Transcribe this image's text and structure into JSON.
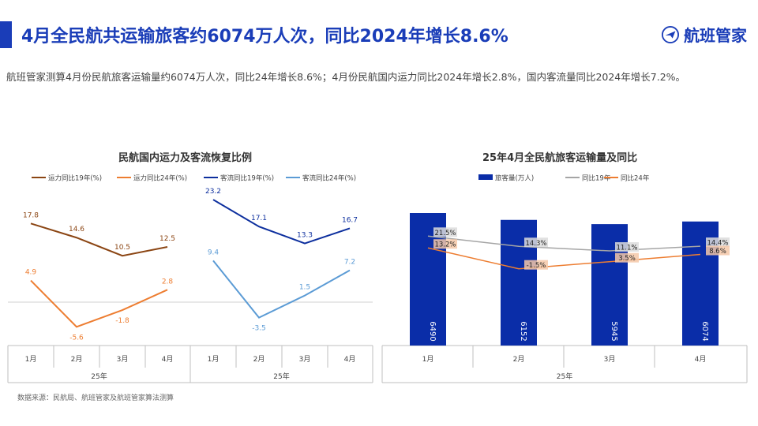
{
  "page": {
    "title": "4月全民航共运输旅客约6074万人次，同比2024年增长8.6%",
    "logo_text": "航班管家",
    "description": "航班管家测算4月份民航旅客运输量约6074万人次，同比24年增长8.6%；4月份民航国内运力同比2024年增长2.8%，国内客流量同比2024年增长7.2%。",
    "source": "数据来源：民航局、航班管家及航班管家算法测算"
  },
  "chart_data": [
    {
      "type": "line",
      "title": "民航国内运力及客流恢复比例",
      "categories": [
        "1月",
        "2月",
        "3月",
        "4月"
      ],
      "x_group_label": "25年",
      "legend_position": "top",
      "panels": [
        {
          "series": [
            {
              "name": "运力同比19年(%)",
              "color": "#8b4513",
              "values": [
                17.8,
                14.6,
                10.5,
                12.5
              ],
              "labels": [
                "17.8",
                "14.6",
                "10.5",
                "12.5"
              ]
            },
            {
              "name": "运力同比24年(%)",
              "color": "#ed7d31",
              "values": [
                4.9,
                -5.6,
                -1.8,
                2.8
              ],
              "labels": [
                "4.9",
                "-5.6",
                "-1.8",
                "2.8"
              ]
            }
          ]
        },
        {
          "series": [
            {
              "name": "客流同比19年(%)",
              "color": "#0d2f9e",
              "values": [
                23.2,
                17.1,
                13.3,
                16.7
              ],
              "labels": [
                "23.2",
                "17.1",
                "13.3",
                "16.7"
              ]
            },
            {
              "name": "客流同比24年(%)",
              "color": "#5b9bd5",
              "values": [
                9.4,
                -3.5,
                1.5,
                7.2
              ],
              "labels": [
                "9.4",
                "-3.5",
                "1.5",
                "7.2"
              ]
            }
          ]
        }
      ]
    },
    {
      "type": "bar",
      "title": "25年4月全民航旅客运输量及同比",
      "categories": [
        "1月",
        "2月",
        "3月",
        "4月"
      ],
      "x_group_label": "25年",
      "legend_position": "top",
      "series": [
        {
          "name": "旅客量(万人)",
          "type": "bar",
          "color": "#0a2da8",
          "values": [
            6490,
            6152,
            5945,
            6074
          ],
          "labels": [
            "6490",
            "6152",
            "5945",
            "6074"
          ]
        },
        {
          "name": "同比19年",
          "type": "line",
          "color": "#a5a5a5",
          "values": [
            21.5,
            14.3,
            11.1,
            14.4
          ],
          "labels": [
            "21.5%",
            "14.3%",
            "11.1%",
            "14.4%"
          ]
        },
        {
          "name": "同比24年",
          "type": "line",
          "color": "#ed7d31",
          "values": [
            13.2,
            -1.5,
            3.5,
            8.6
          ],
          "labels": [
            "13.2%",
            "-1.5%",
            "3.5%",
            "8.6%"
          ]
        }
      ]
    }
  ]
}
